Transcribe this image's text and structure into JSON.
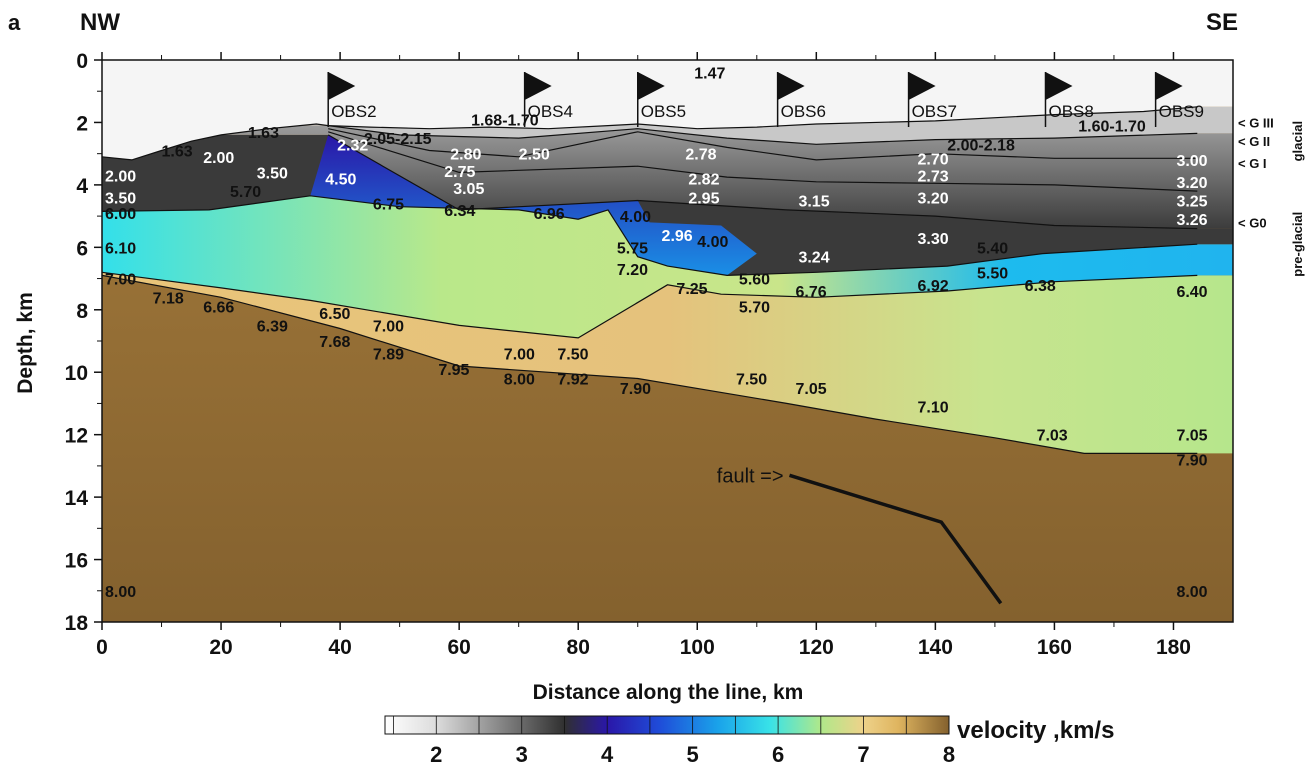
{
  "panel_label": "a",
  "direction_left": "NW",
  "direction_right": "SE",
  "x_axis": {
    "label": "Distance along the line, km",
    "range": [
      0,
      190
    ],
    "ticks": [
      0,
      20,
      40,
      60,
      80,
      100,
      120,
      140,
      160,
      180
    ]
  },
  "y_axis": {
    "label": "Depth, km",
    "range": [
      0,
      18
    ],
    "ticks": [
      0,
      2,
      4,
      6,
      8,
      10,
      12,
      14,
      16,
      18
    ]
  },
  "colorbar": {
    "label": "velocity ,km/s",
    "range": [
      1.4,
      8
    ],
    "ticks": [
      2,
      3,
      4,
      5,
      6,
      7,
      8
    ],
    "stops": [
      {
        "v": 1.4,
        "color": "#ffffff"
      },
      {
        "v": 2.0,
        "color": "#dcdcdc"
      },
      {
        "v": 3.0,
        "color": "#6a6a6a"
      },
      {
        "v": 3.5,
        "color": "#303030"
      },
      {
        "v": 4.0,
        "color": "#2a17a8"
      },
      {
        "v": 4.6,
        "color": "#1f4bd8"
      },
      {
        "v": 5.3,
        "color": "#1aa3ea"
      },
      {
        "v": 5.9,
        "color": "#38e2e8"
      },
      {
        "v": 6.5,
        "color": "#b0e88a"
      },
      {
        "v": 7.0,
        "color": "#eed28a"
      },
      {
        "v": 7.4,
        "color": "#dfb560"
      },
      {
        "v": 8.0,
        "color": "#84612e"
      }
    ]
  },
  "stations": [
    {
      "name": "OBS2",
      "x": 38
    },
    {
      "name": "OBS4",
      "x": 71
    },
    {
      "name": "OBS5",
      "x": 90
    },
    {
      "name": "OBS6",
      "x": 113.5
    },
    {
      "name": "OBS7",
      "x": 135.5
    },
    {
      "name": "OBS8",
      "x": 158.5
    },
    {
      "name": "OBS9",
      "x": 177
    }
  ],
  "horizons": [
    {
      "name": "< G III",
      "depth": 2.0
    },
    {
      "name": "< G II",
      "depth": 2.6
    },
    {
      "name": "< G I",
      "depth": 3.3
    },
    {
      "name": "< G0",
      "depth": 5.2
    }
  ],
  "side_labels": [
    "glacial",
    "pre-glacial"
  ],
  "fault_label": "fault =>",
  "fault_trace": [
    [
      115.5,
      13.3
    ],
    [
      141,
      14.8
    ],
    [
      151,
      17.4
    ]
  ],
  "boundaries": [
    {
      "name": "seafloor",
      "points": [
        [
          0,
          3.1
        ],
        [
          5,
          3.2
        ],
        [
          10,
          2.9
        ],
        [
          15,
          2.6
        ],
        [
          20,
          2.4
        ],
        [
          28,
          2.2
        ],
        [
          36,
          2.05
        ],
        [
          38,
          2.1
        ],
        [
          45,
          2.15
        ],
        [
          55,
          2.2
        ],
        [
          65,
          2.15
        ],
        [
          75,
          2.2
        ],
        [
          85,
          2.1
        ],
        [
          90,
          2.05
        ],
        [
          100,
          2.2
        ],
        [
          110,
          2.15
        ],
        [
          120,
          2.05
        ],
        [
          140,
          1.95
        ],
        [
          160,
          1.75
        ],
        [
          175,
          1.65
        ],
        [
          184,
          1.5
        ]
      ]
    },
    {
      "name": "G II",
      "points": [
        [
          38,
          2.1
        ],
        [
          50,
          2.4
        ],
        [
          70,
          2.5
        ],
        [
          90,
          2.2
        ],
        [
          105,
          2.5
        ],
        [
          120,
          2.7
        ],
        [
          140,
          2.55
        ],
        [
          160,
          2.5
        ],
        [
          184,
          2.35
        ]
      ]
    },
    {
      "name": "G I",
      "points": [
        [
          38,
          2.2
        ],
        [
          55,
          2.9
        ],
        [
          70,
          3.1
        ],
        [
          90,
          2.3
        ],
        [
          105,
          2.8
        ],
        [
          120,
          3.2
        ],
        [
          140,
          3.0
        ],
        [
          160,
          3.15
        ],
        [
          184,
          3.15
        ]
      ]
    },
    {
      "name": "intra-glacial",
      "points": [
        [
          38,
          2.3
        ],
        [
          60,
          3.6
        ],
        [
          90,
          3.4
        ],
        [
          105,
          3.75
        ],
        [
          120,
          3.9
        ],
        [
          140,
          3.95
        ],
        [
          160,
          4.0
        ],
        [
          184,
          4.2
        ]
      ]
    },
    {
      "name": "G0",
      "points": [
        [
          38,
          2.4
        ],
        [
          60,
          4.8
        ],
        [
          90,
          4.5
        ],
        [
          115,
          4.8
        ],
        [
          140,
          5.0
        ],
        [
          160,
          5.3
        ],
        [
          184,
          5.4
        ]
      ]
    },
    {
      "name": "top basement",
      "points": [
        [
          0,
          4.85
        ],
        [
          18,
          4.8
        ],
        [
          35,
          4.35
        ],
        [
          50,
          4.7
        ],
        [
          70,
          4.8
        ],
        [
          80,
          5.1
        ],
        [
          85,
          4.8
        ],
        [
          90,
          6.3
        ],
        [
          95,
          6.6
        ],
        [
          105,
          6.9
        ],
        [
          120,
          6.8
        ],
        [
          142,
          6.6
        ],
        [
          158,
          6.2
        ],
        [
          184,
          5.9
        ]
      ]
    },
    {
      "name": "upper crust base",
      "points": [
        [
          0,
          6.8
        ],
        [
          20,
          7.3
        ],
        [
          35,
          7.7
        ],
        [
          60,
          8.5
        ],
        [
          80,
          8.9
        ],
        [
          95,
          7.2
        ],
        [
          104,
          7.5
        ],
        [
          120,
          7.6
        ],
        [
          142,
          7.4
        ],
        [
          160,
          7.1
        ],
        [
          184,
          6.9
        ]
      ]
    },
    {
      "name": "Moho",
      "points": [
        [
          0,
          6.9
        ],
        [
          20,
          7.6
        ],
        [
          40,
          8.6
        ],
        [
          60,
          9.8
        ],
        [
          90,
          10.2
        ],
        [
          115,
          11.0
        ],
        [
          130,
          11.5
        ],
        [
          150,
          12.1
        ],
        [
          165,
          12.6
        ],
        [
          184,
          12.6
        ]
      ]
    }
  ],
  "velocity_labels": [
    {
      "text": "1.47",
      "x": 99.5,
      "d": 0.4,
      "color": "black"
    },
    {
      "text": "1.68-1.70",
      "x": 62,
      "d": 1.9,
      "color": "black"
    },
    {
      "text": "1.63",
      "x": 10,
      "d": 2.9,
      "color": "black"
    },
    {
      "text": "1.63",
      "x": 24.5,
      "d": 2.3,
      "color": "black"
    },
    {
      "text": "2.05-2.15",
      "x": 44,
      "d": 2.5,
      "color": "black"
    },
    {
      "text": "1.60-1.70",
      "x": 164,
      "d": 2.1,
      "color": "black"
    },
    {
      "text": "2.00-2.18",
      "x": 142,
      "d": 2.7,
      "color": "black"
    },
    {
      "text": "2.00",
      "x": 0.5,
      "d": 3.7,
      "color": "white"
    },
    {
      "text": "2.00",
      "x": 17,
      "d": 3.1,
      "color": "white"
    },
    {
      "text": "2.32",
      "x": 39.5,
      "d": 2.7,
      "color": "white"
    },
    {
      "text": "2.80",
      "x": 58.5,
      "d": 3.0,
      "color": "white"
    },
    {
      "text": "2.50",
      "x": 70,
      "d": 3.0,
      "color": "white"
    },
    {
      "text": "2.78",
      "x": 98,
      "d": 3.0,
      "color": "white"
    },
    {
      "text": "2.70",
      "x": 137,
      "d": 3.15,
      "color": "white"
    },
    {
      "text": "3.00",
      "x": 180.5,
      "d": 3.2,
      "color": "white"
    },
    {
      "text": "3.50",
      "x": 26,
      "d": 3.6,
      "color": "white"
    },
    {
      "text": "4.50",
      "x": 37.5,
      "d": 3.8,
      "color": "white"
    },
    {
      "text": "2.75",
      "x": 57.5,
      "d": 3.55,
      "color": "white"
    },
    {
      "text": "3.05",
      "x": 59,
      "d": 4.1,
      "color": "white"
    },
    {
      "text": "2.82",
      "x": 98.5,
      "d": 3.8,
      "color": "white"
    },
    {
      "text": "2.73",
      "x": 137,
      "d": 3.7,
      "color": "white"
    },
    {
      "text": "3.20",
      "x": 180.5,
      "d": 3.9,
      "color": "white"
    },
    {
      "text": "3.50",
      "x": 0.5,
      "d": 4.4,
      "color": "white"
    },
    {
      "text": "2.95",
      "x": 98.5,
      "d": 4.4,
      "color": "white"
    },
    {
      "text": "3.15",
      "x": 117,
      "d": 4.5,
      "color": "white"
    },
    {
      "text": "3.20",
      "x": 137,
      "d": 4.4,
      "color": "white"
    },
    {
      "text": "3.25",
      "x": 180.5,
      "d": 4.5,
      "color": "white"
    },
    {
      "text": "3.26",
      "x": 180.5,
      "d": 5.1,
      "color": "white"
    },
    {
      "text": "2.96",
      "x": 94,
      "d": 5.6,
      "color": "white"
    },
    {
      "text": "3.30",
      "x": 137,
      "d": 5.7,
      "color": "white"
    },
    {
      "text": "3.24",
      "x": 117,
      "d": 6.3,
      "color": "white"
    },
    {
      "text": "4.00",
      "x": 87,
      "d": 5.0,
      "color": "black"
    },
    {
      "text": "4.00",
      "x": 100,
      "d": 5.8,
      "color": "black"
    },
    {
      "text": "5.70",
      "x": 21.5,
      "d": 4.2,
      "color": "black"
    },
    {
      "text": "6.75",
      "x": 45.5,
      "d": 4.6,
      "color": "black"
    },
    {
      "text": "6.34",
      "x": 57.5,
      "d": 4.8,
      "color": "black"
    },
    {
      "text": "6.96",
      "x": 72.5,
      "d": 4.9,
      "color": "black"
    },
    {
      "text": "5.75",
      "x": 86.5,
      "d": 6.0,
      "color": "black"
    },
    {
      "text": "7.20",
      "x": 86.5,
      "d": 6.7,
      "color": "black"
    },
    {
      "text": "5.40",
      "x": 147,
      "d": 6.0,
      "color": "black"
    },
    {
      "text": "5.50",
      "x": 147,
      "d": 6.8,
      "color": "black"
    },
    {
      "text": "6.00",
      "x": 0.5,
      "d": 4.9,
      "color": "black"
    },
    {
      "text": "6.10",
      "x": 0.5,
      "d": 6.0,
      "color": "black"
    },
    {
      "text": "7.25",
      "x": 96.5,
      "d": 7.3,
      "color": "black"
    },
    {
      "text": "5.60",
      "x": 107,
      "d": 7.0,
      "color": "black"
    },
    {
      "text": "6.76",
      "x": 116.5,
      "d": 7.4,
      "color": "black"
    },
    {
      "text": "6.92",
      "x": 137,
      "d": 7.2,
      "color": "black"
    },
    {
      "text": "6.38",
      "x": 155,
      "d": 7.2,
      "color": "black"
    },
    {
      "text": "6.40",
      "x": 180.5,
      "d": 7.4,
      "color": "black"
    },
    {
      "text": "7.00",
      "x": 0.5,
      "d": 7.0,
      "color": "black"
    },
    {
      "text": "7.18",
      "x": 8.5,
      "d": 7.6,
      "color": "black"
    },
    {
      "text": "6.66",
      "x": 17,
      "d": 7.9,
      "color": "black"
    },
    {
      "text": "6.39",
      "x": 26,
      "d": 8.5,
      "color": "black"
    },
    {
      "text": "6.50",
      "x": 36.5,
      "d": 8.1,
      "color": "black"
    },
    {
      "text": "7.00",
      "x": 45.5,
      "d": 8.5,
      "color": "black"
    },
    {
      "text": "5.70",
      "x": 107,
      "d": 7.9,
      "color": "black"
    },
    {
      "text": "7.68",
      "x": 36.5,
      "d": 9.0,
      "color": "black"
    },
    {
      "text": "7.89",
      "x": 45.5,
      "d": 9.4,
      "color": "black"
    },
    {
      "text": "7.00",
      "x": 67.5,
      "d": 9.4,
      "color": "black"
    },
    {
      "text": "7.50",
      "x": 76.5,
      "d": 9.4,
      "color": "black"
    },
    {
      "text": "7.95",
      "x": 56.5,
      "d": 9.9,
      "color": "black"
    },
    {
      "text": "8.00",
      "x": 67.5,
      "d": 10.2,
      "color": "black"
    },
    {
      "text": "7.92",
      "x": 76.5,
      "d": 10.2,
      "color": "black"
    },
    {
      "text": "7.90",
      "x": 87,
      "d": 10.5,
      "color": "black"
    },
    {
      "text": "7.50",
      "x": 106.5,
      "d": 10.2,
      "color": "black"
    },
    {
      "text": "7.05",
      "x": 116.5,
      "d": 10.5,
      "color": "black"
    },
    {
      "text": "7.10",
      "x": 137,
      "d": 11.1,
      "color": "black"
    },
    {
      "text": "7.03",
      "x": 157,
      "d": 12.0,
      "color": "black"
    },
    {
      "text": "7.05",
      "x": 180.5,
      "d": 12.0,
      "color": "black"
    },
    {
      "text": "7.90",
      "x": 180.5,
      "d": 12.8,
      "color": "black"
    },
    {
      "text": "8.00",
      "x": 0.5,
      "d": 17.0,
      "color": "black"
    },
    {
      "text": "8.00",
      "x": 180.5,
      "d": 17.0,
      "color": "black"
    }
  ]
}
